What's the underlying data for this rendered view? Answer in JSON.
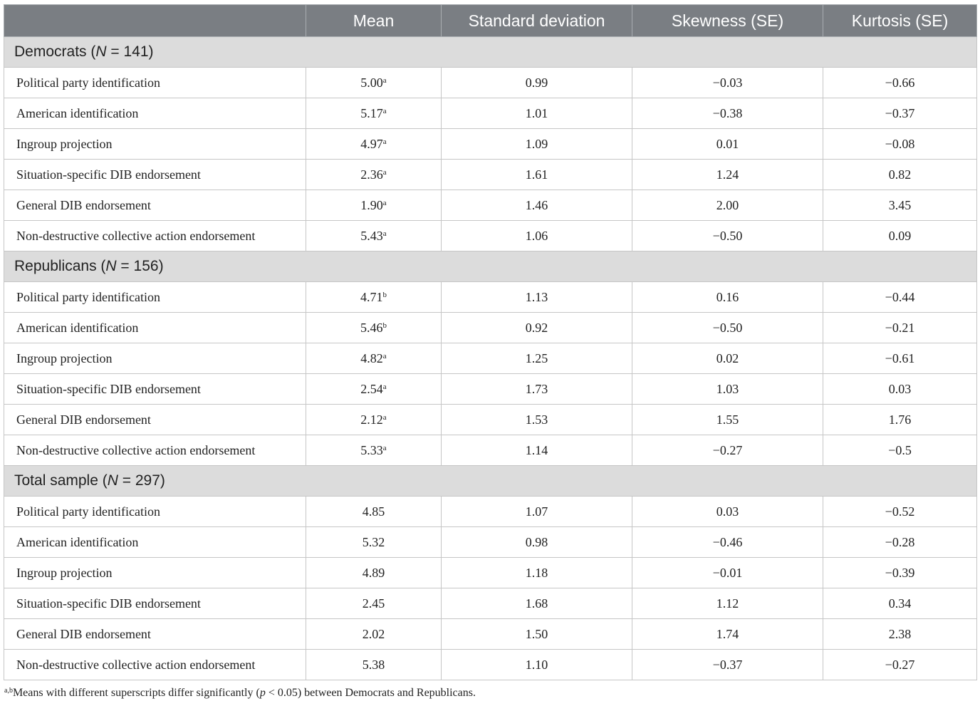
{
  "headers": [
    "",
    "Mean",
    "Standard deviation",
    "Skewness (SE)",
    "Kurtosis (SE)"
  ],
  "sections": [
    {
      "name": "Democrats",
      "n_prefix": "(",
      "n_symbol": "N",
      "n_suffix": " = 141)",
      "rows": [
        {
          "label": "Political party identification",
          "mean": "5.00",
          "sup": "a",
          "sd": "0.99",
          "skew": "−0.03",
          "kurt": "−0.66"
        },
        {
          "label": "American identification",
          "mean": "5.17",
          "sup": "a",
          "sd": "1.01",
          "skew": "−0.38",
          "kurt": "−0.37"
        },
        {
          "label": "Ingroup projection",
          "mean": "4.97",
          "sup": "a",
          "sd": "1.09",
          "skew": "0.01",
          "kurt": "−0.08"
        },
        {
          "label": "Situation-specific DIB endorsement",
          "mean": "2.36",
          "sup": "a",
          "sd": "1.61",
          "skew": "1.24",
          "kurt": "0.82"
        },
        {
          "label": "General DIB endorsement",
          "mean": "1.90",
          "sup": "a",
          "sd": "1.46",
          "skew": "2.00",
          "kurt": "3.45"
        },
        {
          "label": "Non-destructive collective action endorsement",
          "mean": "5.43",
          "sup": "a",
          "sd": "1.06",
          "skew": "−0.50",
          "kurt": "0.09"
        }
      ]
    },
    {
      "name": "Republicans",
      "n_prefix": "(",
      "n_symbol": "N",
      "n_suffix": " = 156)",
      "rows": [
        {
          "label": "Political party identification",
          "mean": "4.71",
          "sup": "b",
          "sd": "1.13",
          "skew": "0.16",
          "kurt": "−0.44"
        },
        {
          "label": "American identification",
          "mean": "5.46",
          "sup": "b",
          "sd": "0.92",
          "skew": "−0.50",
          "kurt": "−0.21"
        },
        {
          "label": "Ingroup projection",
          "mean": "4.82",
          "sup": "a",
          "sd": "1.25",
          "skew": "0.02",
          "kurt": "−0.61"
        },
        {
          "label": "Situation-specific DIB endorsement",
          "mean": "2.54",
          "sup": "a",
          "sd": "1.73",
          "skew": "1.03",
          "kurt": "0.03"
        },
        {
          "label": "General DIB endorsement",
          "mean": "2.12",
          "sup": "a",
          "sd": "1.53",
          "skew": "1.55",
          "kurt": "1.76"
        },
        {
          "label": "Non-destructive collective action endorsement",
          "mean": "5.33",
          "sup": "a",
          "sd": "1.14",
          "skew": "−0.27",
          "kurt": "−0.5"
        }
      ]
    },
    {
      "name": "Total sample",
      "n_prefix": "(",
      "n_symbol": "N",
      "n_suffix": " = 297)",
      "rows": [
        {
          "label": "Political party identification",
          "mean": "4.85",
          "sup": "",
          "sd": "1.07",
          "skew": "0.03",
          "kurt": "−0.52"
        },
        {
          "label": "American identification",
          "mean": "5.32",
          "sup": "",
          "sd": "0.98",
          "skew": "−0.46",
          "kurt": "−0.28"
        },
        {
          "label": "Ingroup projection",
          "mean": "4.89",
          "sup": "",
          "sd": "1.18",
          "skew": "−0.01",
          "kurt": "−0.39"
        },
        {
          "label": "Situation-specific DIB endorsement",
          "mean": "2.45",
          "sup": "",
          "sd": "1.68",
          "skew": "1.12",
          "kurt": "0.34"
        },
        {
          "label": "General DIB endorsement",
          "mean": "2.02",
          "sup": "",
          "sd": "1.50",
          "skew": "1.74",
          "kurt": "2.38"
        },
        {
          "label": "Non-destructive collective action endorsement",
          "mean": "5.38",
          "sup": "",
          "sd": "1.10",
          "skew": "−0.37",
          "kurt": "−0.27"
        }
      ]
    }
  ],
  "footnote": {
    "sup": "a,b",
    "text_before": "Means with different superscripts differ significantly (",
    "p_symbol": "p",
    "text_after": " < 0.05) between Democrats and Republicans."
  }
}
